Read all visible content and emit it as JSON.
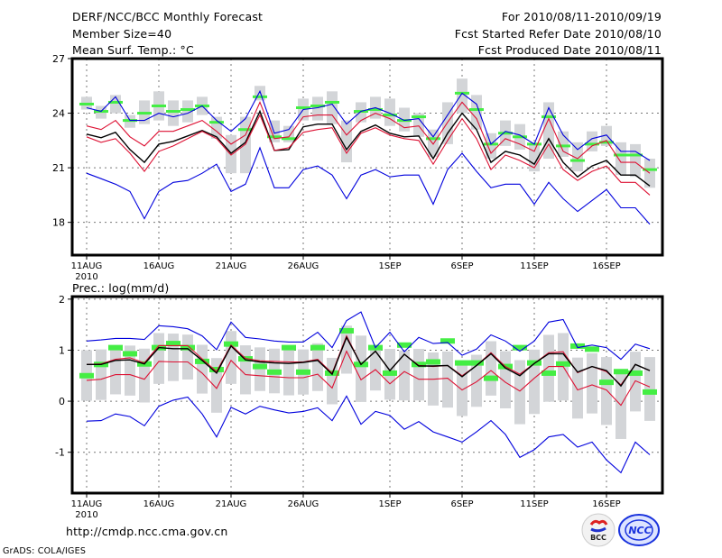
{
  "header": {
    "title": "DERF/NCC/BCC Monthly Forecast",
    "member_size": "Member Size=40",
    "variable": "Mean Surf. Temp.: °C",
    "period": "For 2010/08/11-2010/09/19",
    "started": "Fcst Started Refer Date 2010/08/10",
    "produced": "Fcst Produced Date 2010/08/11"
  },
  "footer": {
    "url": "http://cmdp.ncc.cma.gov.cn",
    "credit": "GrADS: COLA/IGES",
    "logo_left": "BCC",
    "logo_right": "NCC"
  },
  "colors": {
    "max_min": "#0000dd",
    "quartile": "#dd1133",
    "mean": "#000000",
    "observed": "#44ee44",
    "spread": "#d3d5d8",
    "grid": "#777777"
  },
  "chart_data": [
    {
      "type": "line",
      "title": "Mean Surf. Temp.: °C",
      "ylabel": "°C",
      "xlabel": "",
      "ylim": [
        16.2,
        27
      ],
      "yticks": [
        18,
        21,
        24,
        27
      ],
      "xtick_labels": [
        "11AUG",
        "16AUG",
        "21AUG",
        "26AUG",
        "1SEP",
        "6SEP",
        "11SEP",
        "16SEP"
      ],
      "xtick_days": [
        0,
        5,
        10,
        15,
        21,
        26,
        31,
        36
      ],
      "year_label": "2010",
      "grid": true,
      "days": 40,
      "series": [
        {
          "name": "max",
          "color_key": "max_min",
          "values": [
            24.3,
            24.1,
            24.9,
            23.6,
            23.6,
            24.0,
            23.8,
            24.0,
            24.4,
            23.6,
            23.0,
            23.7,
            25.2,
            22.9,
            23.1,
            24.2,
            24.3,
            24.5,
            23.4,
            24.1,
            24.3,
            24.0,
            23.6,
            23.7,
            22.7,
            23.9,
            25.1,
            24.5,
            22.3,
            23.0,
            22.8,
            22.3,
            24.3,
            22.8,
            22.0,
            22.6,
            22.8,
            21.9,
            21.9,
            21.4
          ]
        },
        {
          "name": "upper-quartile",
          "color_key": "quartile",
          "values": [
            23.3,
            23.1,
            23.6,
            22.7,
            22.2,
            23.0,
            23.0,
            23.3,
            23.6,
            23.0,
            22.3,
            22.8,
            24.6,
            22.6,
            22.7,
            23.8,
            23.9,
            23.9,
            22.8,
            23.6,
            24.0,
            23.7,
            23.2,
            23.3,
            22.3,
            23.5,
            24.6,
            23.7,
            21.8,
            22.6,
            22.3,
            21.9,
            23.7,
            21.9,
            21.5,
            22.2,
            22.5,
            21.3,
            21.3,
            20.7
          ]
        },
        {
          "name": "mean",
          "color_key": "mean",
          "values": [
            22.85,
            22.65,
            22.95,
            22.0,
            21.3,
            22.3,
            22.45,
            22.75,
            23.05,
            22.7,
            21.8,
            22.4,
            24.1,
            21.95,
            22.0,
            23.25,
            23.4,
            23.4,
            22.0,
            23.0,
            23.35,
            22.9,
            22.7,
            22.75,
            21.5,
            22.9,
            24.0,
            23.1,
            21.3,
            21.9,
            21.7,
            21.2,
            22.6,
            21.3,
            20.5,
            21.1,
            21.4,
            20.6,
            20.6,
            20.0
          ]
        },
        {
          "name": "lower-quartile",
          "color_key": "quartile",
          "values": [
            22.7,
            22.4,
            22.6,
            21.8,
            20.8,
            21.9,
            22.2,
            22.6,
            23.0,
            22.6,
            21.7,
            22.3,
            23.9,
            21.95,
            22.1,
            22.95,
            23.1,
            23.2,
            21.8,
            22.9,
            23.2,
            22.8,
            22.6,
            22.5,
            21.2,
            22.5,
            23.7,
            22.6,
            20.9,
            21.7,
            21.4,
            21.0,
            22.3,
            20.9,
            20.3,
            20.8,
            21.1,
            20.2,
            20.2,
            19.5
          ]
        },
        {
          "name": "min",
          "color_key": "max_min",
          "values": [
            20.7,
            20.4,
            20.1,
            19.7,
            18.2,
            19.7,
            20.2,
            20.3,
            20.7,
            21.2,
            19.7,
            20.1,
            22.1,
            19.9,
            19.9,
            20.9,
            21.1,
            20.6,
            19.3,
            20.6,
            20.9,
            20.5,
            20.6,
            20.6,
            19.0,
            20.9,
            21.8,
            20.8,
            19.9,
            20.1,
            20.1,
            19.0,
            20.2,
            19.3,
            18.6,
            19.2,
            19.8,
            18.8,
            18.8,
            17.9
          ]
        }
      ],
      "observed": [
        24.5,
        24.1,
        24.6,
        23.6,
        24.0,
        24.4,
        24.1,
        24.2,
        24.4,
        23.5,
        null,
        23.1,
        24.9,
        22.7,
        22.6,
        24.3,
        24.4,
        24.6,
        null,
        24.1,
        24.2,
        23.9,
        23.6,
        23.8,
        22.6,
        null,
        25.1,
        24.2,
        22.3,
        22.9,
        22.7,
        22.3,
        23.8,
        22.2,
        21.4,
        22.3,
        22.4,
        21.7,
        21.7,
        20.9
      ],
      "spread_ranges": [
        [
          24.2,
          24.9
        ],
        [
          23.7,
          24.4
        ],
        [
          24.0,
          25.0
        ],
        [
          23.2,
          23.9
        ],
        [
          23.4,
          24.7
        ],
        [
          23.6,
          25.2
        ],
        [
          23.3,
          24.7
        ],
        [
          23.5,
          24.7
        ],
        [
          23.9,
          24.9
        ],
        [
          22.6,
          23.8
        ],
        [
          20.7,
          22.8
        ],
        [
          20.7,
          23.8
        ],
        [
          24.7,
          25.5
        ],
        [
          22.4,
          23.6
        ],
        [
          22.4,
          23.3
        ],
        [
          23.6,
          24.8
        ],
        [
          23.6,
          24.9
        ],
        [
          23.4,
          25.2
        ],
        [
          21.3,
          23.6
        ],
        [
          23.5,
          24.6
        ],
        [
          23.7,
          24.9
        ],
        [
          23.3,
          24.8
        ],
        [
          23.0,
          24.3
        ],
        [
          22.7,
          24.0
        ],
        [
          21.6,
          23.1
        ],
        [
          22.3,
          24.6
        ],
        [
          24.0,
          25.9
        ],
        [
          23.1,
          25.0
        ],
        [
          21.5,
          22.9
        ],
        [
          22.2,
          23.6
        ],
        [
          22.0,
          23.4
        ],
        [
          20.8,
          22.3
        ],
        [
          21.5,
          24.6
        ],
        [
          21.6,
          23.0
        ],
        [
          20.8,
          22.4
        ],
        [
          21.9,
          23.0
        ],
        [
          22.2,
          23.3
        ],
        [
          20.6,
          22.4
        ],
        [
          20.5,
          22.3
        ],
        [
          19.9,
          21.5
        ]
      ]
    },
    {
      "type": "line",
      "title": "Prec.: log(mm/d)",
      "ylabel": "log(mm/d)",
      "xlabel": "",
      "ylim": [
        -1.8,
        2.05
      ],
      "yticks": [
        -1,
        0,
        1,
        2
      ],
      "xtick_labels": [
        "11AUG",
        "16AUG",
        "21AUG",
        "26AUG",
        "1SEP",
        "6SEP",
        "11SEP",
        "16SEP"
      ],
      "xtick_days": [
        0,
        5,
        10,
        15,
        21,
        26,
        31,
        36
      ],
      "year_label": "2010",
      "grid": true,
      "days": 40,
      "series": [
        {
          "name": "max",
          "color_key": "max_min",
          "values": [
            1.18,
            1.2,
            1.23,
            1.23,
            1.21,
            1.48,
            1.46,
            1.42,
            1.28,
            1.01,
            1.55,
            1.25,
            1.22,
            1.18,
            1.16,
            1.16,
            1.35,
            1.05,
            1.58,
            1.75,
            1.05,
            1.35,
            0.97,
            1.25,
            1.13,
            1.15,
            0.9,
            1.02,
            1.3,
            1.18,
            0.98,
            1.18,
            1.55,
            1.6,
            1.05,
            1.1,
            1.05,
            0.82,
            1.12,
            1.03
          ]
        },
        {
          "name": "upper-quartile",
          "color_key": "quartile",
          "values": [
            0.72,
            0.73,
            0.82,
            0.85,
            0.75,
            1.09,
            1.09,
            1.09,
            0.83,
            0.58,
            1.1,
            0.84,
            0.79,
            0.78,
            0.77,
            0.77,
            0.82,
            0.55,
            1.28,
            0.72,
            0.98,
            0.6,
            0.92,
            0.7,
            0.68,
            0.7,
            0.5,
            0.7,
            0.95,
            0.68,
            0.53,
            0.74,
            0.95,
            0.97,
            0.56,
            0.68,
            0.58,
            0.32,
            0.72,
            0.6
          ]
        },
        {
          "name": "mean",
          "color_key": "mean",
          "values": [
            0.72,
            0.72,
            0.8,
            0.81,
            0.73,
            1.05,
            1.03,
            1.03,
            0.8,
            0.55,
            1.08,
            0.81,
            0.77,
            0.75,
            0.74,
            0.76,
            0.8,
            0.53,
            1.25,
            0.72,
            0.98,
            0.6,
            0.92,
            0.69,
            0.69,
            0.7,
            0.48,
            0.7,
            0.93,
            0.65,
            0.5,
            0.74,
            0.93,
            0.93,
            0.57,
            0.68,
            0.6,
            0.3,
            0.72,
            0.6
          ]
        },
        {
          "name": "lower-quartile",
          "color_key": "quartile",
          "values": [
            0.41,
            0.43,
            0.52,
            0.52,
            0.43,
            0.78,
            0.77,
            0.77,
            0.55,
            0.25,
            0.8,
            0.52,
            0.5,
            0.48,
            0.46,
            0.46,
            0.53,
            0.26,
            0.98,
            0.42,
            0.62,
            0.34,
            0.58,
            0.43,
            0.43,
            0.45,
            0.22,
            0.38,
            0.6,
            0.37,
            0.2,
            0.45,
            0.68,
            0.68,
            0.22,
            0.32,
            0.22,
            -0.08,
            0.4,
            0.28
          ]
        },
        {
          "name": "min",
          "color_key": "max_min",
          "values": [
            -0.39,
            -0.38,
            -0.25,
            -0.3,
            -0.48,
            -0.1,
            0.02,
            0.08,
            -0.25,
            -0.7,
            -0.12,
            -0.25,
            -0.1,
            -0.17,
            -0.23,
            -0.2,
            -0.13,
            -0.38,
            0.1,
            -0.45,
            -0.2,
            -0.28,
            -0.55,
            -0.4,
            -0.6,
            -0.7,
            -0.8,
            -0.6,
            -0.38,
            -0.65,
            -1.1,
            -0.95,
            -0.7,
            -0.65,
            -0.9,
            -0.8,
            -1.15,
            -1.4,
            -0.8,
            -1.05
          ]
        }
      ],
      "observed": [
        0.5,
        0.72,
        1.05,
        0.93,
        0.73,
        1.05,
        1.13,
        1.05,
        0.78,
        0.62,
        1.12,
        0.83,
        0.68,
        0.57,
        1.05,
        0.57,
        1.05,
        0.55,
        1.38,
        0.72,
        1.05,
        0.55,
        1.1,
        0.72,
        0.77,
        1.18,
        0.75,
        0.75,
        0.45,
        0.68,
        1.05,
        0.75,
        0.55,
        0.73,
        1.08,
        1.02,
        0.37,
        0.58,
        0.55,
        0.18
      ]
    }
  ]
}
